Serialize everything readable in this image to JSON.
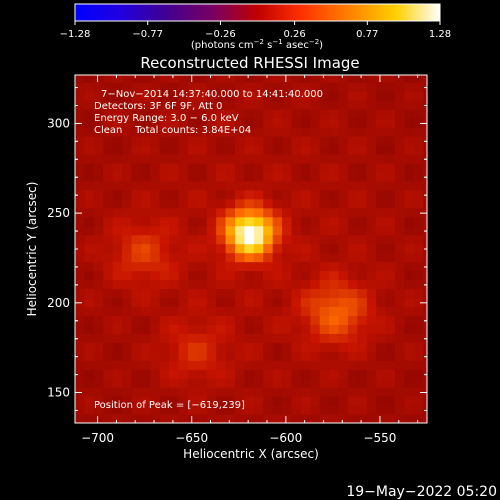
{
  "chart_data": {
    "type": "heatmap",
    "title": "Reconstructed RHESSI Image",
    "xlabel": "Heliocentric X (arcsec)",
    "ylabel": "Heliocentric Y (arcsec)",
    "xlim": [
      -712,
      -525
    ],
    "ylim": [
      133,
      327
    ],
    "x_ticks": [
      -700,
      -650,
      -600,
      -550
    ],
    "y_ticks": [
      150,
      200,
      250,
      300
    ],
    "x_tick_labels": [
      "−700",
      "−650",
      "−600",
      "−550"
    ],
    "y_tick_labels": [
      "150",
      "200",
      "250",
      "300"
    ],
    "colorbar": {
      "min": -1.28,
      "max": 1.28,
      "ticks": [
        -1.28,
        -0.77,
        -0.26,
        0.26,
        0.77,
        1.28
      ],
      "tick_labels": [
        "−1.28",
        "−0.77",
        "−0.26",
        "0.26",
        "0.77",
        "1.28"
      ],
      "units_prefix": "(photons cm",
      "units_exp1": "−2",
      "units_mid1": " s",
      "units_exp2": "−1",
      "units_mid2": " asec",
      "units_exp3": "−2",
      "units_suffix": ")"
    },
    "annotations": {
      "line1": "7−Nov−2014 14:37:40.000 to 14:41:40.000",
      "line2": "Detectors: 3F 6F 9F, Att 0",
      "line3": "Energy Range: 3.0 − 6.0 keV",
      "line4": "Clean    Total counts: 3.84E+04",
      "peak": "Position of Peak = [−619,239]"
    },
    "sources": [
      {
        "x": -619,
        "y": 239,
        "value": 1.28
      },
      {
        "x": -573,
        "y": 195,
        "value": 0.55
      },
      {
        "x": -676,
        "y": 228,
        "value": 0.4
      },
      {
        "x": -648,
        "y": 173,
        "value": 0.35
      }
    ],
    "background_level": 0.3
  },
  "footer_timestamp": "19−May−2022 05:20"
}
